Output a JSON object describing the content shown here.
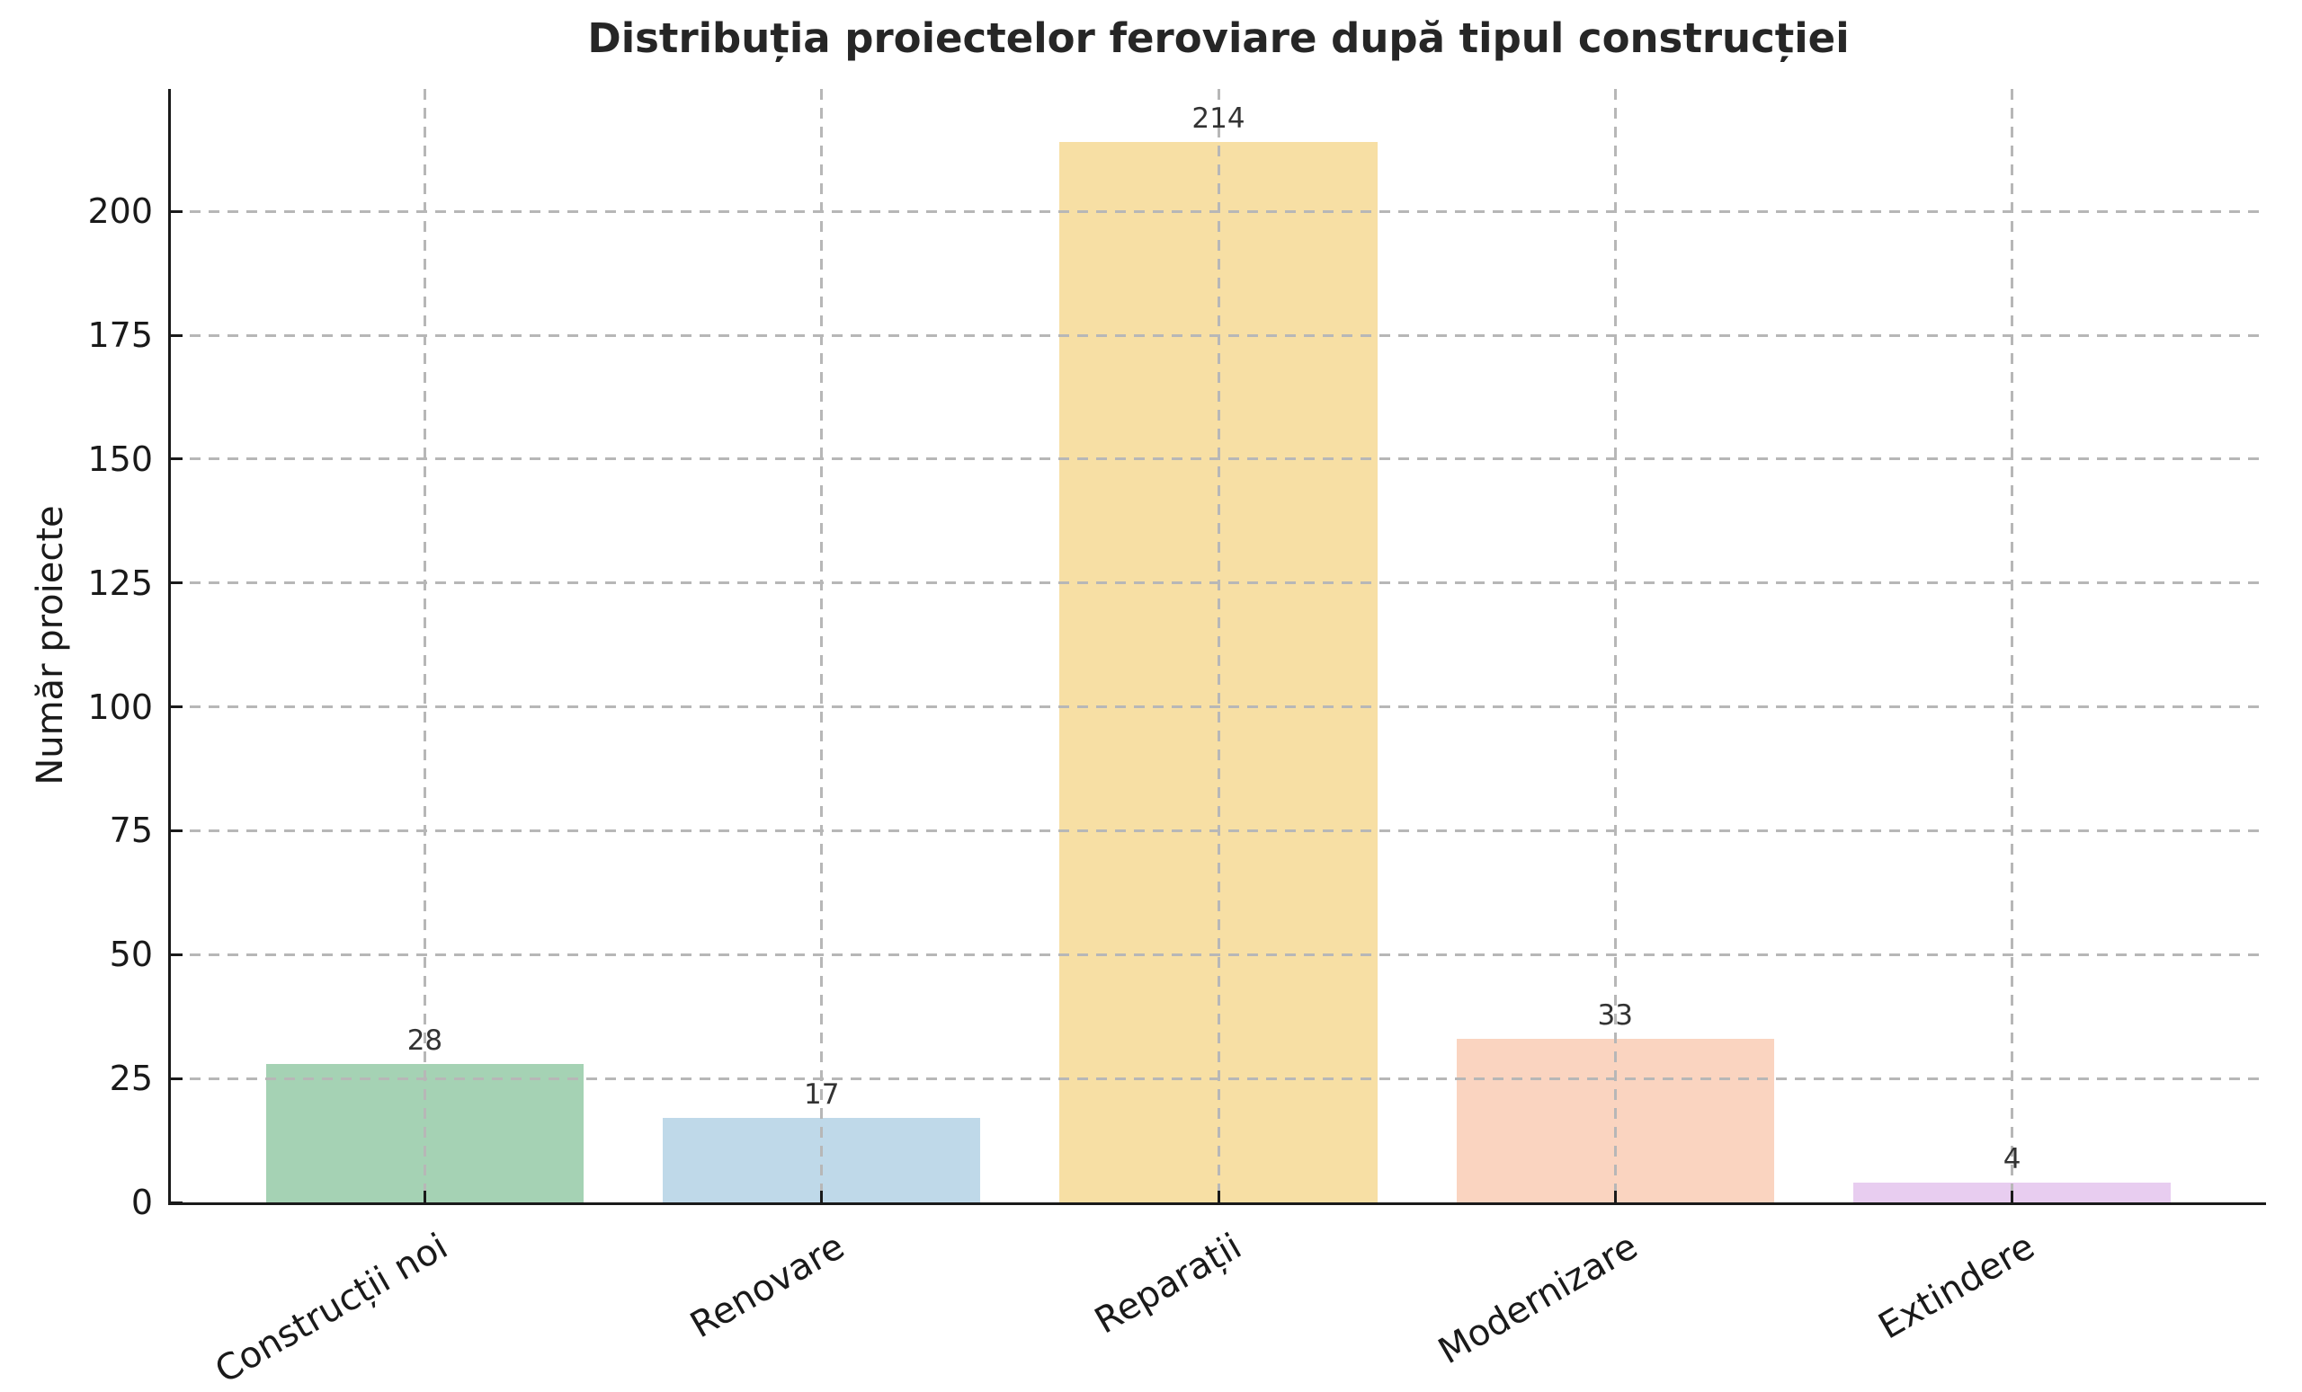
{
  "chart_data": {
    "type": "bar",
    "title": "Distribuția proiectelor feroviare după tipul construcției",
    "ylabel": "Număr proiecte",
    "xlabel": "",
    "categories": [
      "Construcții noi",
      "Renovare",
      "Reparații",
      "Modernizare",
      "Extindere"
    ],
    "values": [
      28,
      17,
      214,
      33,
      4
    ],
    "value_labels": [
      "28",
      "17",
      "214",
      "33",
      "4"
    ],
    "bar_colors": [
      "#a5d2b4",
      "#bfd9e9",
      "#f7dfa4",
      "#fad4c0",
      "#e8cdf0"
    ],
    "yticks": [
      0,
      25,
      50,
      75,
      100,
      125,
      150,
      175,
      200
    ],
    "ylim": [
      0,
      224.7
    ],
    "grid": "dashed, horizontal and vertical, drawn above bars",
    "legend": "none",
    "axis_color": "#1a1a1a",
    "grid_color": "#b7b7b7"
  }
}
